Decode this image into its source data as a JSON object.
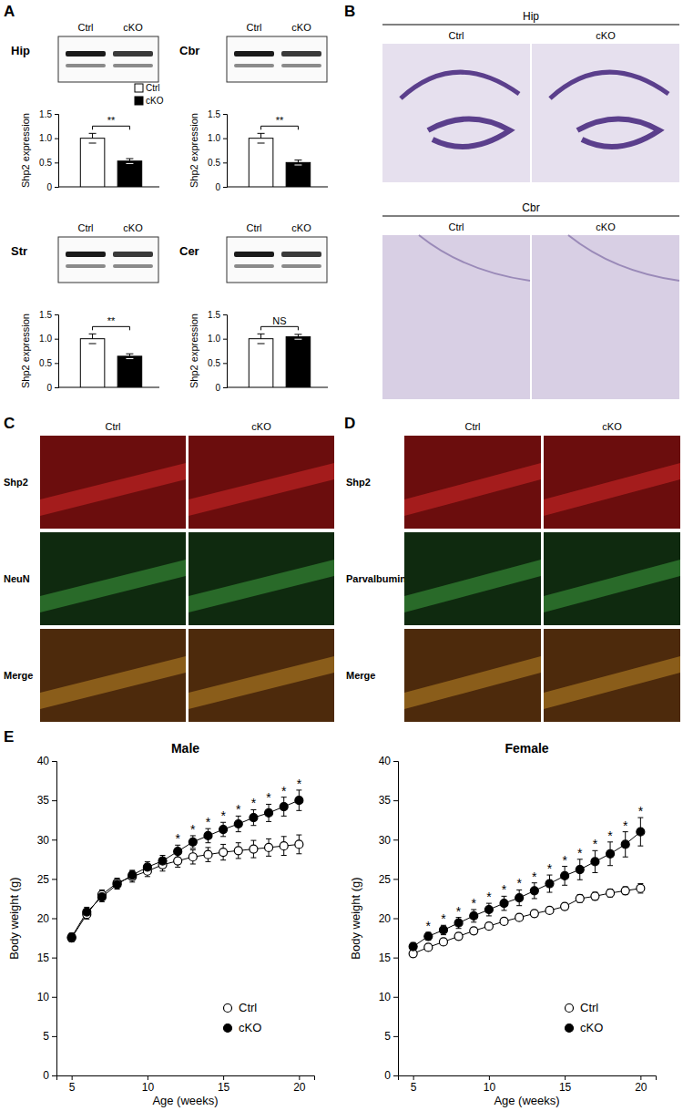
{
  "chart_data": [
    {
      "type": "bar",
      "title": "Hip",
      "ylabel": "Shp2 expression",
      "ylim": [
        0,
        1.5
      ],
      "yticks": [
        0,
        0.5,
        {
          "value": 1,
          "label": "1.0"
        },
        1.5
      ],
      "series": [
        {
          "name": "Ctrl",
          "color": "#ffffff",
          "values": [
            1.0
          ],
          "error": [
            0.1
          ]
        },
        {
          "name": "cKO",
          "color": "#000000",
          "values": [
            0.53
          ],
          "error": [
            0.05
          ]
        }
      ],
      "annotations": [
        "**"
      ],
      "legend": "upper right"
    },
    {
      "type": "bar",
      "title": "Cbr",
      "ylabel": "Shp2 expression",
      "ylim": [
        0,
        1.5
      ],
      "yticks": [
        0,
        0.5,
        {
          "value": 1,
          "label": "1.0"
        },
        1.5
      ],
      "series": [
        {
          "name": "Ctrl",
          "color": "#ffffff",
          "values": [
            1.0
          ],
          "error": [
            0.1
          ]
        },
        {
          "name": "cKO",
          "color": "#000000",
          "values": [
            0.5
          ],
          "error": [
            0.05
          ]
        }
      ],
      "annotations": [
        "**"
      ]
    },
    {
      "type": "bar",
      "title": "Str",
      "ylabel": "Shp2 expression",
      "ylim": [
        0,
        1.5
      ],
      "yticks": [
        0,
        0.5,
        {
          "value": 1,
          "label": "1.0"
        },
        1.5
      ],
      "series": [
        {
          "name": "Ctrl",
          "color": "#ffffff",
          "values": [
            1.0
          ],
          "error": [
            0.1
          ]
        },
        {
          "name": "cKO",
          "color": "#000000",
          "values": [
            0.64
          ],
          "error": [
            0.05
          ]
        }
      ],
      "annotations": [
        "**"
      ]
    },
    {
      "type": "bar",
      "title": "Cer",
      "ylabel": "Shp2 expression",
      "ylim": [
        0,
        1.5
      ],
      "yticks": [
        0,
        0.5,
        {
          "value": 1,
          "label": "1.0"
        },
        1.5
      ],
      "series": [
        {
          "name": "Ctrl",
          "color": "#ffffff",
          "values": [
            1.0
          ],
          "error": [
            0.1
          ]
        },
        {
          "name": "cKO",
          "color": "#000000",
          "values": [
            1.04
          ],
          "error": [
            0.05
          ]
        }
      ],
      "annotations": [
        "NS"
      ]
    },
    {
      "type": "line",
      "title": "Male",
      "xlabel": "Age (weeks)",
      "ylabel": "Body weight (g)",
      "xlim": [
        4,
        21
      ],
      "xticks": [
        5,
        10,
        15,
        20
      ],
      "ylim": [
        0,
        40
      ],
      "yticks": [
        0,
        5,
        10,
        15,
        20,
        25,
        30,
        35,
        40
      ],
      "x": [
        5,
        6,
        7,
        8,
        9,
        10,
        11,
        12,
        13,
        14,
        15,
        16,
        17,
        18,
        19,
        20
      ],
      "series": [
        {
          "name": "Ctrl",
          "color": "#ffffff",
          "marker": "circle",
          "values": [
            17.5,
            20.5,
            23,
            24.5,
            25.3,
            26,
            26.8,
            27.3,
            27.8,
            28.1,
            28.4,
            28.6,
            28.8,
            29,
            29.2,
            29.4
          ],
          "error": [
            0.5,
            0.6,
            0.6,
            0.6,
            0.7,
            0.7,
            0.8,
            0.8,
            0.9,
            0.9,
            1.0,
            1.0,
            1.1,
            1.1,
            1.2,
            1.2
          ]
        },
        {
          "name": "cKO",
          "color": "#000000",
          "marker": "circle",
          "values": [
            17.6,
            20.8,
            22.7,
            24.3,
            25.5,
            26.5,
            27.3,
            28.5,
            29.7,
            30.5,
            31.3,
            32,
            32.8,
            33.4,
            34.2,
            35
          ],
          "error": [
            0.5,
            0.6,
            0.6,
            0.6,
            0.6,
            0.7,
            0.7,
            0.8,
            0.8,
            0.9,
            0.9,
            1.0,
            1.0,
            1.1,
            1.2,
            1.3
          ]
        }
      ],
      "annotations": [
        {
          "x": 12,
          "text": "*"
        },
        {
          "x": 13,
          "text": "*"
        },
        {
          "x": 14,
          "text": "*"
        },
        {
          "x": 15,
          "text": "*"
        },
        {
          "x": 16,
          "text": "*"
        },
        {
          "x": 17,
          "text": "*"
        },
        {
          "x": 18,
          "text": "*"
        },
        {
          "x": 19,
          "text": "*"
        },
        {
          "x": 20,
          "text": "*"
        }
      ],
      "legend": "lower right"
    },
    {
      "type": "line",
      "title": "Female",
      "xlabel": "Age (weeks)",
      "ylabel": "Body weight (g)",
      "xlim": [
        4,
        21
      ],
      "xticks": [
        5,
        10,
        15,
        20
      ],
      "ylim": [
        0,
        40
      ],
      "yticks": [
        0,
        5,
        10,
        15,
        20,
        25,
        30,
        35,
        40
      ],
      "x": [
        5,
        6,
        7,
        8,
        9,
        10,
        11,
        12,
        13,
        14,
        15,
        16,
        17,
        18,
        19,
        20
      ],
      "series": [
        {
          "name": "Ctrl",
          "color": "#ffffff",
          "marker": "circle",
          "values": [
            15.5,
            16.3,
            17,
            17.7,
            18.4,
            19,
            19.6,
            20.1,
            20.6,
            21,
            21.5,
            22.5,
            22.8,
            23.2,
            23.5,
            23.8
          ],
          "error": [
            0.4,
            0.4,
            0.4,
            0.4,
            0.4,
            0.4,
            0.4,
            0.4,
            0.4,
            0.4,
            0.4,
            0.5,
            0.5,
            0.5,
            0.5,
            0.6
          ]
        },
        {
          "name": "cKO",
          "color": "#000000",
          "marker": "circle",
          "values": [
            16.4,
            17.7,
            18.5,
            19.4,
            20.3,
            21.1,
            21.9,
            22.6,
            23.5,
            24.4,
            25.4,
            26.2,
            27.2,
            28.2,
            29.4,
            31
          ],
          "error": [
            0.5,
            0.5,
            0.6,
            0.7,
            0.8,
            0.8,
            0.9,
            1.0,
            1.0,
            1.1,
            1.2,
            1.3,
            1.4,
            1.5,
            1.6,
            1.8
          ]
        }
      ],
      "annotations": [
        {
          "x": 6,
          "text": "*"
        },
        {
          "x": 7,
          "text": "*"
        },
        {
          "x": 8,
          "text": "*"
        },
        {
          "x": 9,
          "text": "*"
        },
        {
          "x": 10,
          "text": "*"
        },
        {
          "x": 11,
          "text": "*"
        },
        {
          "x": 12,
          "text": "*"
        },
        {
          "x": 13,
          "text": "*"
        },
        {
          "x": 14,
          "text": "*"
        },
        {
          "x": 15,
          "text": "*"
        },
        {
          "x": 16,
          "text": "*"
        },
        {
          "x": 17,
          "text": "*"
        },
        {
          "x": 18,
          "text": "*"
        },
        {
          "x": 19,
          "text": "*"
        },
        {
          "x": 20,
          "text": "*"
        }
      ],
      "legend": "lower right"
    }
  ],
  "figure": {
    "panel_labels": [
      "A",
      "B",
      "C",
      "D",
      "E"
    ],
    "B": {
      "sections": [
        {
          "title": "Hip",
          "columns": [
            "Ctrl",
            "cKO"
          ]
        },
        {
          "title": "Cbr",
          "columns": [
            "Ctrl",
            "cKO"
          ]
        }
      ]
    },
    "C": {
      "columns": [
        "Ctrl",
        "cKO"
      ],
      "rows": [
        "Shp2",
        "NeuN",
        "Merge"
      ]
    },
    "D": {
      "columns": [
        "Ctrl",
        "cKO"
      ],
      "rows": [
        "Shp2",
        "Parvalbumin",
        "Merge"
      ]
    }
  }
}
